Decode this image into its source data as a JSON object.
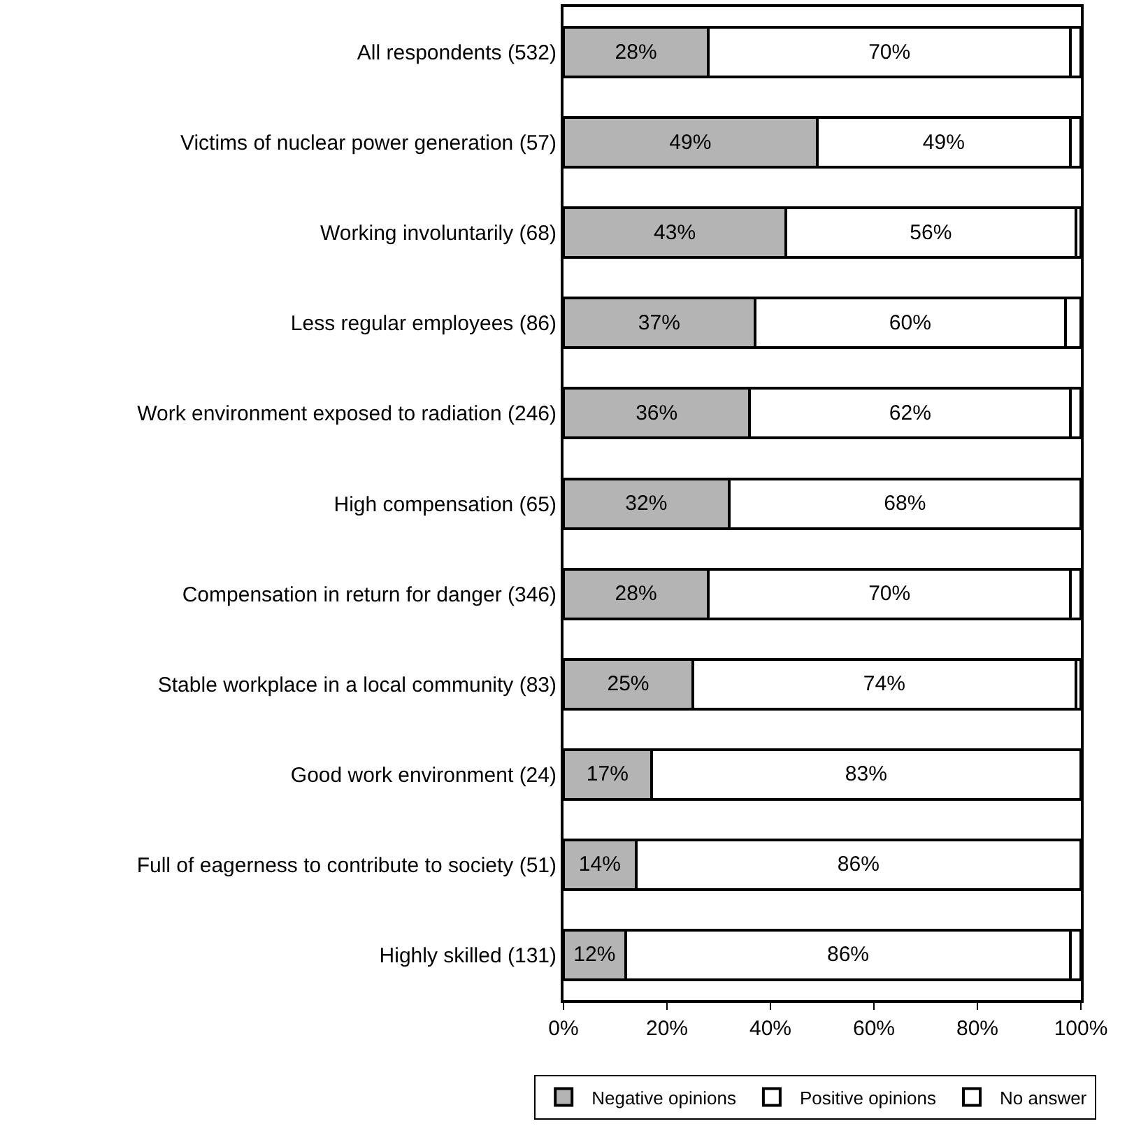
{
  "chart_data": {
    "type": "bar",
    "orientation": "horizontal",
    "stacked": true,
    "categories": [
      "All respondents (532)",
      "Victims of nuclear power generation (57)",
      "Working involuntarily (68)",
      "Less regular employees (86)",
      "Work environment exposed to radiation (246)",
      "High compensation (65)",
      "Compensation in return for danger (346)",
      "Stable workplace in a local community (83)",
      "Good work environment (24)",
      "Full of eagerness to contribute to society (51)",
      "Highly skilled (131)"
    ],
    "series": [
      {
        "name": "Negative opinions",
        "color": "#b4b4b4",
        "values": [
          28,
          49,
          43,
          37,
          36,
          32,
          28,
          25,
          17,
          14,
          12
        ],
        "value_labels": [
          "28%",
          "49%",
          "43%",
          "37%",
          "36%",
          "32%",
          "28%",
          "25%",
          "17%",
          "14%",
          "12%"
        ]
      },
      {
        "name": "Positive opinions",
        "color": "#ffffff",
        "values": [
          70,
          49,
          56,
          60,
          62,
          68,
          70,
          74,
          83,
          86,
          86
        ],
        "value_labels": [
          "70%",
          "49%",
          "56%",
          "60%",
          "62%",
          "68%",
          "70%",
          "74%",
          "83%",
          "86%",
          "86%"
        ]
      },
      {
        "name": "No answer",
        "color": "#ffffff",
        "values": [
          2,
          2,
          1,
          3,
          2,
          0,
          2,
          1,
          0,
          0,
          2
        ]
      }
    ],
    "xlim": [
      0,
      100
    ],
    "xticks": [
      {
        "value": 0,
        "label": "0%"
      },
      {
        "value": 20,
        "label": "20%"
      },
      {
        "value": 40,
        "label": "40%"
      },
      {
        "value": 60,
        "label": "60%"
      },
      {
        "value": 80,
        "label": "80%"
      },
      {
        "value": 100,
        "label": "100%"
      }
    ],
    "legend": "bottom right",
    "grid": false
  }
}
